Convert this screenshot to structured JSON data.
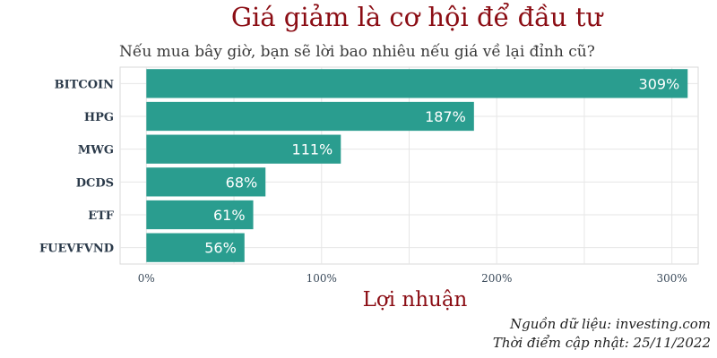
{
  "chart_data": {
    "type": "bar",
    "orientation": "horizontal",
    "title": "Giá giảm là cơ hội để đầu tư",
    "subtitle": "Nếu mua bây giờ, bạn sẽ lời bao nhiêu nếu giá về lại đỉnh cũ?",
    "xlabel": "Lợi nhuận",
    "ylabel": "",
    "categories": [
      "BITCOIN",
      "HPG",
      "MWG",
      "DCDS",
      "ETF",
      "FUEVFVND"
    ],
    "values": [
      309,
      187,
      111,
      68,
      61,
      56
    ],
    "value_labels": [
      "309%",
      "187%",
      "111%",
      "68%",
      "61%",
      "56%"
    ],
    "xlim": [
      -15,
      315
    ],
    "x_ticks": [
      0,
      100,
      200,
      300
    ],
    "x_tick_labels": [
      "0%",
      "100%",
      "200%",
      "300%"
    ],
    "bar_color": "#2a9d8f",
    "grid": true,
    "legend": "none"
  },
  "caption": {
    "source": "Nguồn dữ liệu: investing.com",
    "updated": "Thời điểm cập nhật: 25/11/2022"
  }
}
